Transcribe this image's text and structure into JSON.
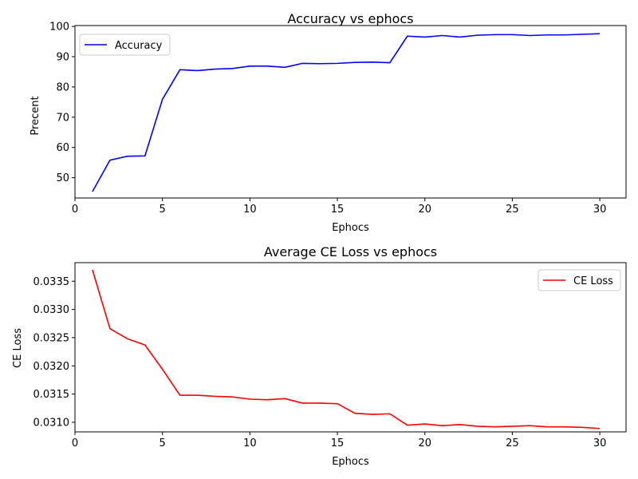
{
  "chart_data": [
    {
      "type": "line",
      "title": "Accuracy vs ephocs",
      "xlabel": "Ephocs",
      "ylabel": "Precent",
      "xlim": [
        0,
        31.5
      ],
      "ylim": [
        43.3,
        100.3
      ],
      "xticks": [
        0,
        5,
        10,
        15,
        20,
        25,
        30
      ],
      "xtick_labels": [
        "0",
        "5",
        "10",
        "15",
        "20",
        "25",
        "30"
      ],
      "yticks": [
        50,
        60,
        70,
        80,
        90,
        100
      ],
      "ytick_labels": [
        "50",
        "60",
        "70",
        "80",
        "90",
        "100"
      ],
      "legend_position": "top-left",
      "grid": false,
      "series": [
        {
          "name": "Accuracy",
          "color": "#0000ff",
          "x": [
            1,
            2,
            3,
            4,
            5,
            6,
            7,
            8,
            9,
            10,
            11,
            12,
            13,
            14,
            15,
            16,
            17,
            18,
            19,
            20,
            21,
            22,
            23,
            24,
            25,
            26,
            27,
            28,
            29,
            30
          ],
          "values": [
            45.4,
            55.8,
            57.1,
            57.2,
            75.9,
            85.7,
            85.4,
            85.9,
            86.1,
            86.9,
            86.9,
            86.5,
            87.8,
            87.7,
            87.8,
            88.1,
            88.2,
            88.0,
            96.8,
            96.5,
            97.0,
            96.5,
            97.1,
            97.3,
            97.3,
            97.0,
            97.2,
            97.2,
            97.4,
            97.6
          ]
        }
      ]
    },
    {
      "type": "line",
      "title": "Average CE Loss vs ephocs",
      "xlabel": "Ephocs",
      "ylabel": "CE Loss",
      "xlim": [
        0,
        31.5
      ],
      "ylim": [
        0.03083,
        0.033829
      ],
      "xticks": [
        0,
        5,
        10,
        15,
        20,
        25,
        30
      ],
      "xtick_labels": [
        "0",
        "5",
        "10",
        "15",
        "20",
        "25",
        "30"
      ],
      "yticks": [
        0.031,
        0.0315,
        0.032,
        0.0325,
        0.033,
        0.0335
      ],
      "ytick_labels": [
        "0.0310",
        "0.0315",
        "0.0320",
        "0.0325",
        "0.0330",
        "0.0335"
      ],
      "legend_position": "top-right",
      "grid": false,
      "series": [
        {
          "name": "CE Loss",
          "color": "#ff0000",
          "x": [
            1,
            2,
            3,
            4,
            5,
            6,
            7,
            8,
            9,
            10,
            11,
            12,
            13,
            14,
            15,
            16,
            17,
            18,
            19,
            20,
            21,
            22,
            23,
            24,
            25,
            26,
            27,
            28,
            29,
            30
          ],
          "values": [
            0.0337,
            0.03266,
            0.03248,
            0.03237,
            0.03194,
            0.03148,
            0.03148,
            0.03146,
            0.03145,
            0.03141,
            0.0314,
            0.03142,
            0.03134,
            0.03134,
            0.03133,
            0.03116,
            0.03114,
            0.03115,
            0.03095,
            0.03097,
            0.03094,
            0.03096,
            0.03093,
            0.03092,
            0.03093,
            0.03094,
            0.03092,
            0.03092,
            0.03091,
            0.03089
          ]
        }
      ]
    }
  ]
}
